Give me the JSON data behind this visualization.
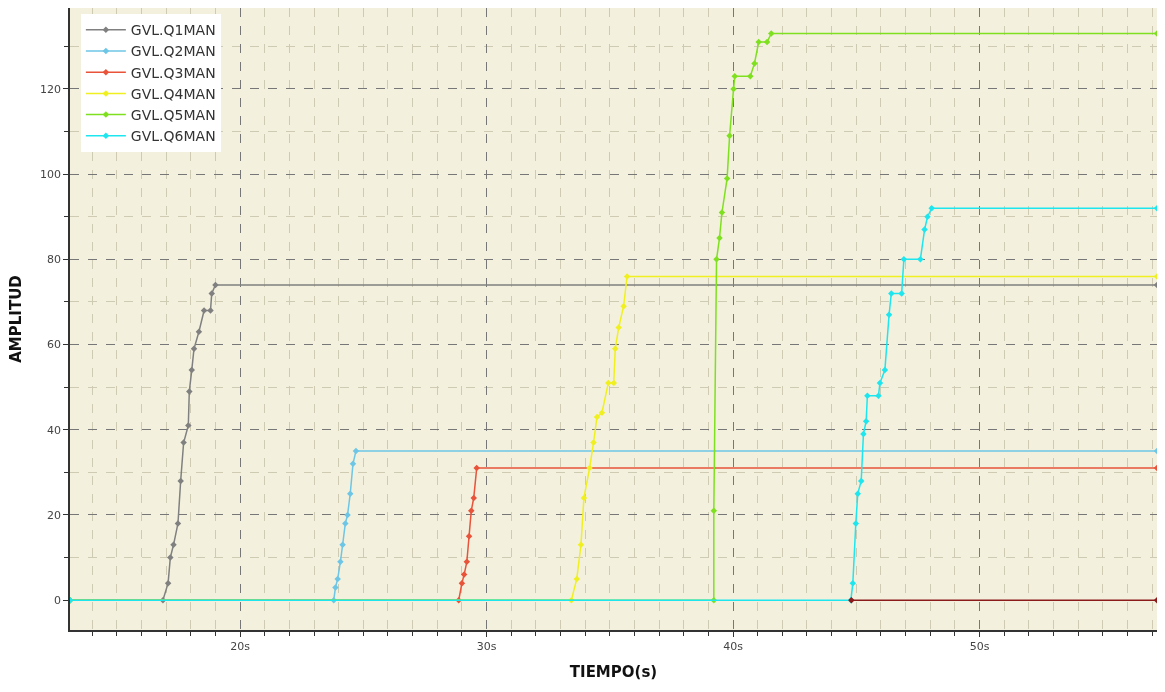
{
  "chart_data": {
    "type": "line",
    "xlabel": "TIEMPO(s)",
    "ylabel": "AMPLITUD",
    "xlim": [
      13.1,
      57.2
    ],
    "ylim": [
      -7,
      139
    ],
    "xticks": [
      {
        "value": 20,
        "label": "20s"
      },
      {
        "value": 30,
        "label": "30s"
      },
      {
        "value": 40,
        "label": "40s"
      },
      {
        "value": 50,
        "label": "50s"
      }
    ],
    "yticks": [
      0,
      20,
      40,
      60,
      80,
      100,
      120
    ],
    "grid": true,
    "legend": "top left",
    "marker": "diamond",
    "line_style": "solid",
    "series": [
      {
        "name": "GVL.Q1MAN",
        "color": "#808080",
        "x": [
          13.1,
          16.87,
          17.08,
          17.17,
          17.3,
          17.48,
          17.59,
          17.71,
          17.9,
          17.94,
          18.04,
          18.13,
          18.33,
          18.54,
          18.8,
          18.85,
          19.0,
          57.2
        ],
        "values": [
          0,
          0,
          4,
          10,
          13,
          18,
          28,
          37,
          41,
          49,
          54,
          59,
          63,
          68,
          68,
          72,
          74,
          74
        ]
      },
      {
        "name": "GVL.Q2MAN",
        "color": "#6ec6e6",
        "x": [
          13.1,
          23.8,
          23.87,
          23.96,
          24.07,
          24.16,
          24.27,
          24.36,
          24.47,
          24.58,
          24.7,
          57.2
        ],
        "values": [
          0,
          0,
          3,
          5,
          9,
          13,
          18,
          20,
          25,
          32,
          35,
          35
        ]
      },
      {
        "name": "GVL.Q3MAN",
        "color": "#e8533a",
        "x": [
          13.1,
          28.87,
          29.0,
          29.09,
          29.2,
          29.29,
          29.38,
          29.48,
          29.6,
          57.2
        ],
        "values": [
          0,
          0,
          4,
          6,
          9,
          15,
          21,
          24,
          31,
          31
        ]
      },
      {
        "name": "GVL.Q4MAN",
        "color": "#f0f020",
        "x": [
          13.1,
          33.44,
          33.66,
          33.83,
          33.95,
          34.18,
          34.34,
          34.48,
          34.68,
          34.94,
          35.16,
          35.22,
          35.36,
          35.56,
          35.7,
          57.2
        ],
        "values": [
          0,
          0,
          5,
          13,
          24,
          31,
          37,
          43,
          44,
          51,
          51,
          59,
          64,
          69,
          76,
          76
        ]
      },
      {
        "name": "GVL.Q5MAN",
        "color": "#7fe020",
        "x": [
          13.1,
          39.22,
          39.22,
          39.33,
          39.45,
          39.55,
          39.76,
          39.86,
          40.02,
          40.07,
          40.7,
          40.87,
          41.04,
          41.38,
          41.55,
          57.2
        ],
        "values": [
          0,
          0,
          21,
          80,
          85,
          91,
          99,
          109,
          120,
          123,
          123,
          126,
          131,
          131,
          133,
          133
        ]
      },
      {
        "name": "GVL.Q6MAN",
        "color": "#1ee6ee",
        "x": [
          13.1,
          44.78,
          44.86,
          44.98,
          45.06,
          45.2,
          45.29,
          45.4,
          45.45,
          45.9,
          45.96,
          46.16,
          46.33,
          46.42,
          46.84,
          46.93,
          47.6,
          47.77,
          47.89,
          48.06,
          57.2
        ],
        "values": [
          0,
          0,
          4,
          18,
          25,
          28,
          39,
          42,
          48,
          48,
          51,
          54,
          67,
          72,
          72,
          80,
          80,
          87,
          90,
          92,
          92
        ]
      },
      {
        "color": "#8b1a1a",
        "x": [
          44.8,
          57.2
        ],
        "values": [
          0,
          0
        ]
      }
    ]
  }
}
